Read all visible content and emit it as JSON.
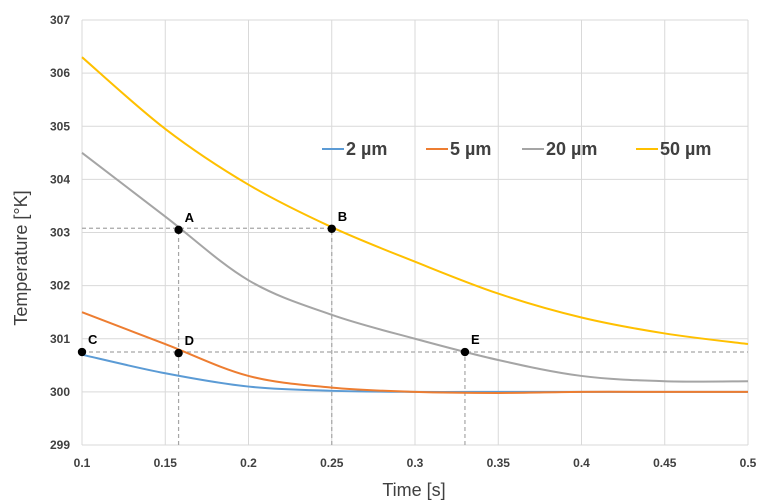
{
  "chart_data": {
    "type": "line",
    "xlabel": "Time [s]",
    "ylabel": "Temperature  [°K]",
    "xlim": [
      0.1,
      0.5
    ],
    "ylim": [
      299,
      307
    ],
    "x_ticks": [
      "0.1",
      "0.15",
      "0.2",
      "0.25",
      "0.3",
      "0.35",
      "0.4",
      "0.45",
      "0.5"
    ],
    "y_ticks": [
      "299",
      "300",
      "301",
      "302",
      "303",
      "304",
      "305",
      "306",
      "307"
    ],
    "grid": true,
    "legend_position": "upper-right",
    "x": [
      0.1,
      0.15,
      0.2,
      0.25,
      0.3,
      0.35,
      0.4,
      0.45,
      0.5
    ],
    "series": [
      {
        "name": "2 µm",
        "color": "#5b9bd5",
        "values": [
          300.7,
          300.35,
          300.1,
          300.02,
          300.0,
          300.0,
          300.0,
          300.0,
          300.0
        ]
      },
      {
        "name": "5 µm",
        "color": "#ed7d31",
        "values": [
          301.5,
          300.9,
          300.3,
          300.08,
          300.0,
          299.98,
          300.0,
          300.0,
          300.0
        ]
      },
      {
        "name": "20 µm",
        "color": "#a5a5a5",
        "values": [
          304.5,
          303.3,
          302.1,
          301.45,
          301.0,
          300.6,
          300.3,
          300.2,
          300.2
        ]
      },
      {
        "name": "50 µm",
        "color": "#ffc000",
        "values": [
          306.3,
          304.95,
          303.9,
          303.1,
          302.45,
          301.85,
          301.4,
          301.1,
          300.9
        ]
      }
    ],
    "annotations": [
      {
        "label": "A",
        "x": 0.158,
        "y": 303.05
      },
      {
        "label": "B",
        "x": 0.25,
        "y": 303.07
      },
      {
        "label": "C",
        "x": 0.1,
        "y": 300.75
      },
      {
        "label": "D",
        "x": 0.158,
        "y": 300.73
      },
      {
        "label": "E",
        "x": 0.33,
        "y": 300.75
      }
    ],
    "reference_lines": [
      {
        "type": "h",
        "y": 303.08,
        "x_from": 0.1,
        "x_to": 0.25
      },
      {
        "type": "h",
        "y": 300.75,
        "x_from": 0.1,
        "x_to": 0.5
      },
      {
        "type": "v",
        "x": 0.158,
        "y_from": 299,
        "y_to": 303.05
      },
      {
        "type": "v",
        "x": 0.25,
        "y_from": 299,
        "y_to": 303.07
      },
      {
        "type": "v",
        "x": 0.33,
        "y_from": 299,
        "y_to": 300.75
      }
    ]
  }
}
